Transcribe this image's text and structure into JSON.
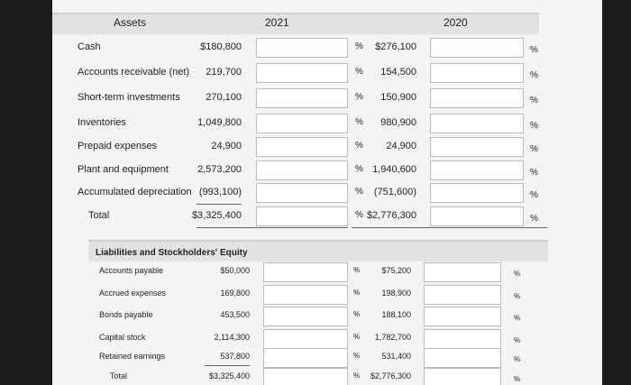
{
  "header": {
    "title": "Assets",
    "col1": "2021",
    "col2": "2020"
  },
  "percent_sign": "%",
  "assets": [
    [
      "Cash",
      "$180,800",
      "$276,100"
    ],
    [
      "Accounts receivable (net)",
      "219,700",
      "154,500"
    ],
    [
      "Short-term investments",
      "270,100",
      "150,900"
    ],
    [
      "Inventories",
      "1,049,800",
      "980,900"
    ],
    [
      "Prepaid expenses",
      "24,900",
      "24,900"
    ],
    [
      "Plant and equipment",
      "2,573,200",
      "1,940,600"
    ],
    [
      "Accumulated depreciation",
      "(993,100)",
      "(751,600)"
    ],
    [
      "Total",
      "$3,325,400",
      "$2,776,300"
    ]
  ],
  "liabilities_title": "Liabilities and Stockholders' Equity",
  "liabilities": [
    [
      "Accounts payable",
      "$50,000",
      "$75,200"
    ],
    [
      "Accrued expenses",
      "169,800",
      "198,900"
    ],
    [
      "Bonds payable",
      "453,500",
      "188,100"
    ],
    [
      "Capital stock",
      "2,114,300",
      "1,782,700"
    ],
    [
      "Retained earnings",
      "537,800",
      "531,400"
    ],
    [
      "Total",
      "$3,325,400",
      "$2,776,300"
    ]
  ]
}
